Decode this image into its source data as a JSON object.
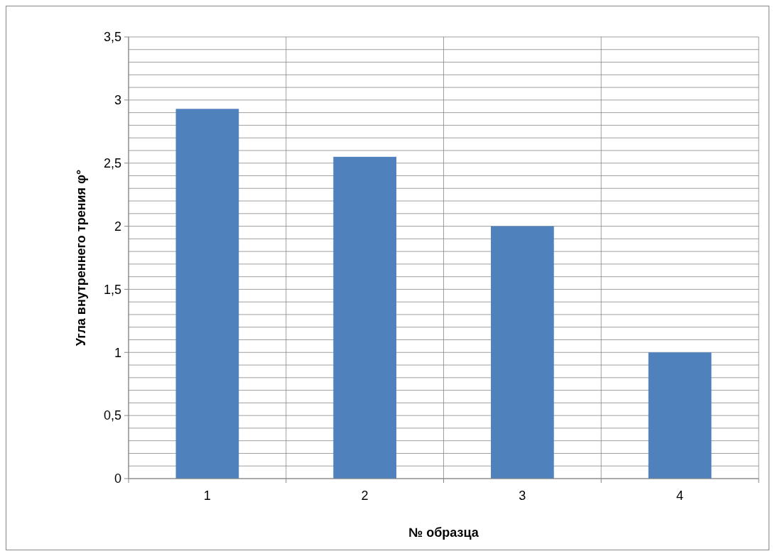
{
  "chart_data": {
    "type": "bar",
    "xlabel": "№ образца",
    "ylabel": "Угла внутреннего трения φ°",
    "categories": [
      "1",
      "2",
      "3",
      "4"
    ],
    "values": [
      2.93,
      2.55,
      2.0,
      1.0
    ],
    "color": "#4f81bd",
    "ylim": [
      0,
      3.5
    ],
    "yticks": [
      0,
      {
        "value": 0.1,
        "label": null
      },
      {
        "value": 0.2,
        "label": null
      },
      {
        "value": 0.3,
        "label": null
      },
      {
        "value": 0.4,
        "label": null
      },
      {
        "value": 0.5,
        "label": "0,5"
      },
      {
        "value": 0.6,
        "label": null
      },
      {
        "value": 0.7,
        "label": null
      },
      {
        "value": 0.8,
        "label": null
      },
      {
        "value": 0.9,
        "label": null
      },
      1,
      {
        "value": 1.1,
        "label": null
      },
      {
        "value": 1.2,
        "label": null
      },
      {
        "value": 1.3,
        "label": null
      },
      {
        "value": 1.4,
        "label": null
      },
      {
        "value": 1.5,
        "label": "1,5"
      },
      {
        "value": 1.6,
        "label": null
      },
      {
        "value": 1.7,
        "label": null
      },
      {
        "value": 1.8,
        "label": null
      },
      {
        "value": 1.9,
        "label": null
      },
      2,
      {
        "value": 2.1,
        "label": null
      },
      {
        "value": 2.2,
        "label": null
      },
      {
        "value": 2.3,
        "label": null
      },
      {
        "value": 2.4,
        "label": null
      },
      {
        "value": 2.5,
        "label": "2,5"
      },
      {
        "value": 2.6,
        "label": null
      },
      {
        "value": 2.7,
        "label": null
      },
      {
        "value": 2.8,
        "label": null
      },
      {
        "value": 2.9,
        "label": null
      },
      3,
      {
        "value": 3.1,
        "label": null
      },
      {
        "value": 3.2,
        "label": null
      },
      {
        "value": 3.3,
        "label": null
      },
      {
        "value": 3.4,
        "label": null
      },
      {
        "value": 3.5,
        "label": "3,5"
      }
    ],
    "grid": true
  }
}
